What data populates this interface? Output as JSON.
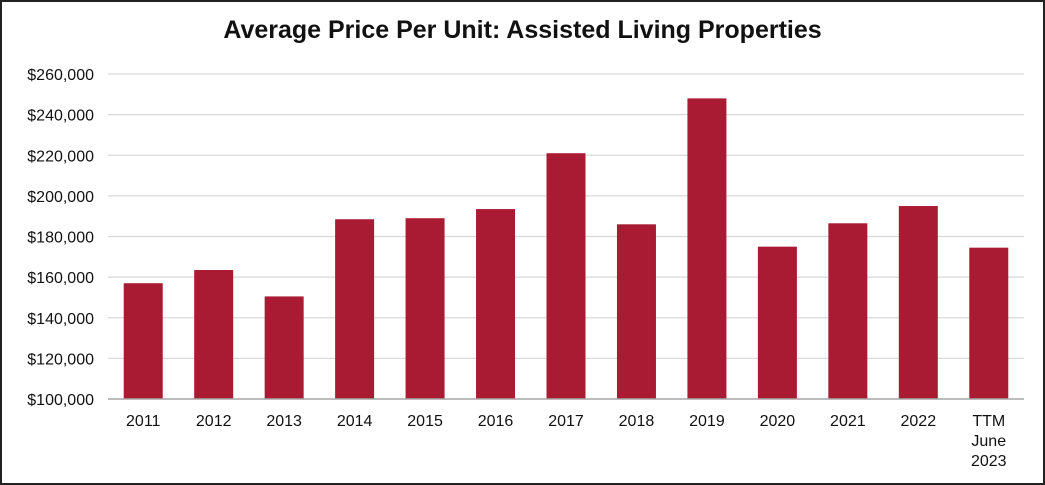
{
  "chart_data": {
    "type": "bar",
    "title": "Average Price Per Unit: Assisted Living Properties",
    "xlabel": "",
    "ylabel": "",
    "categories": [
      "2011",
      "2012",
      "2013",
      "2014",
      "2015",
      "2016",
      "2017",
      "2018",
      "2019",
      "2020",
      "2021",
      "2022",
      "TTM June 2023"
    ],
    "category_lines": [
      [
        "2011"
      ],
      [
        "2012"
      ],
      [
        "2013"
      ],
      [
        "2014"
      ],
      [
        "2015"
      ],
      [
        "2016"
      ],
      [
        "2017"
      ],
      [
        "2018"
      ],
      [
        "2019"
      ],
      [
        "2020"
      ],
      [
        "2021"
      ],
      [
        "2022"
      ],
      [
        "TTM",
        "June",
        "2023"
      ]
    ],
    "values": [
      157000,
      163500,
      150500,
      188500,
      189000,
      193500,
      221000,
      186000,
      248000,
      175000,
      186500,
      195000,
      174500
    ],
    "ylim": [
      100000,
      260000
    ],
    "yticks": [
      100000,
      120000,
      140000,
      160000,
      180000,
      200000,
      220000,
      240000,
      260000
    ],
    "ytick_labels": [
      "$100,000",
      "$120,000",
      "$140,000",
      "$160,000",
      "$180,000",
      "$200,000",
      "$220,000",
      "$240,000",
      "$260,000"
    ],
    "grid": true,
    "legend": "none",
    "colors": {
      "bar": "#A91B32",
      "grid": "#D9D9D9",
      "axis": "#A6A6A6"
    }
  }
}
